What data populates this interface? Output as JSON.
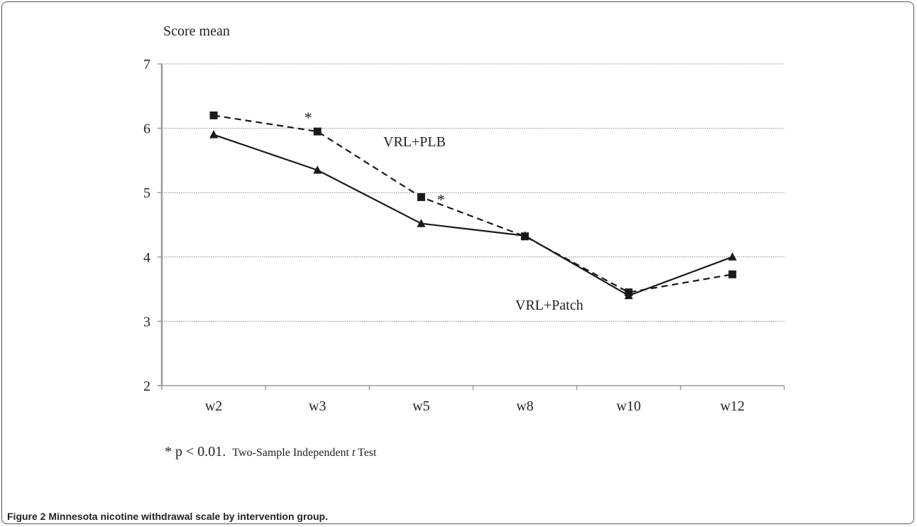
{
  "chart_data": {
    "type": "line",
    "ylabel": "Score mean",
    "xlabel": "",
    "categories": [
      "w2",
      "w3",
      "w5",
      "w8",
      "w10",
      "w12"
    ],
    "ylim": [
      2,
      7
    ],
    "yticks": [
      2,
      3,
      4,
      5,
      6,
      7
    ],
    "grid": true,
    "series": [
      {
        "name": "VRL+PLB",
        "marker": "square",
        "line_style": "dashed",
        "color": "#1a1a1a",
        "values": [
          6.2,
          5.95,
          4.93,
          4.32,
          3.45,
          3.73
        ]
      },
      {
        "name": "VRL+Patch",
        "marker": "triangle",
        "line_style": "solid",
        "color": "#1a1a1a",
        "values": [
          5.9,
          5.35,
          4.52,
          4.33,
          3.4,
          4.0
        ]
      }
    ],
    "significance_markers": [
      {
        "symbol": "*",
        "category": "w3",
        "series": "VRL+PLB"
      },
      {
        "symbol": "*",
        "category": "w5",
        "series": "VRL+PLB"
      }
    ],
    "footnote": {
      "prefix": "* p < 0.01.",
      "text_before_italic": "Two-Sample Independent ",
      "italic": "t",
      "text_after_italic": " Test"
    }
  },
  "caption": {
    "label": "Figure 2",
    "text": "Minnesota nicotine withdrawal scale by intervention group."
  }
}
